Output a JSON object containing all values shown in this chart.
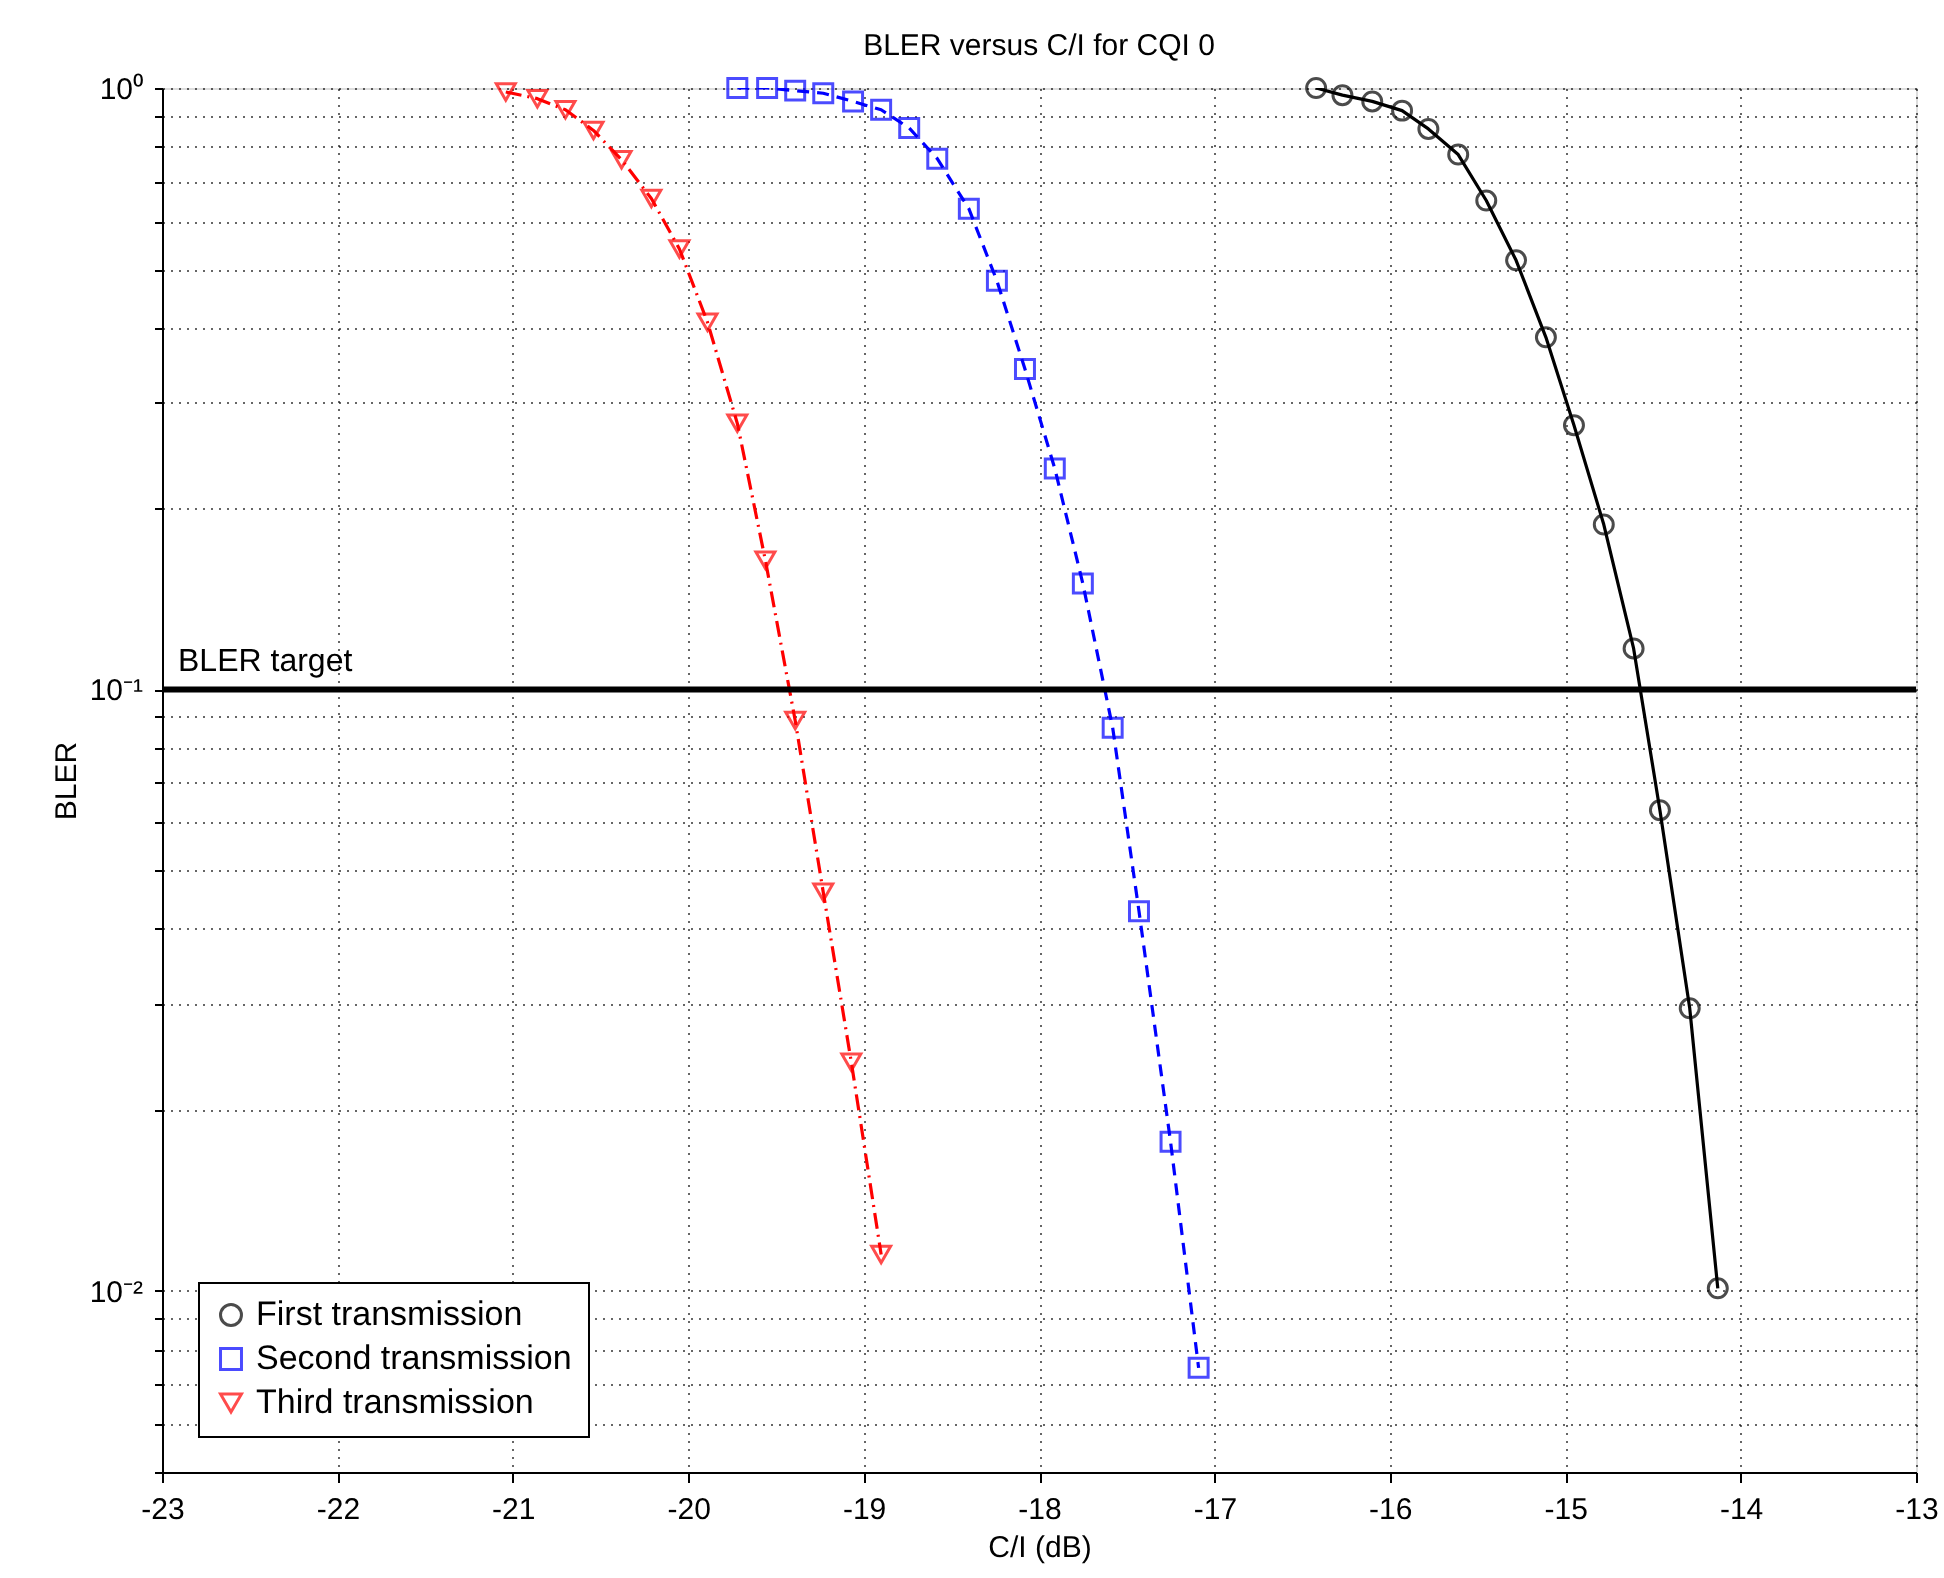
{
  "chart_data": {
    "type": "line",
    "title": "BLER versus C/I for CQI 0",
    "xlabel": "C/I (dB)",
    "ylabel": "BLER",
    "log": "y",
    "grid": true,
    "legend": "bottom left",
    "xlim": [
      -23,
      -13
    ],
    "xticks": [
      -23,
      -22,
      -21,
      -20,
      -19,
      -18,
      -17,
      -16,
      -15,
      -14,
      -13
    ],
    "ylim": [
      0.005,
      1
    ],
    "yticks": [
      {
        "value": 0.005,
        "label": null
      },
      {
        "value": 0.006,
        "label": null
      },
      {
        "value": 0.007,
        "label": null
      },
      {
        "value": 0.008,
        "label": null
      },
      {
        "value": 0.009,
        "label": null
      },
      {
        "value": 0.01,
        "label": "10⁻²"
      },
      {
        "value": 0.02,
        "label": null
      },
      {
        "value": 0.03,
        "label": null
      },
      {
        "value": 0.04,
        "label": null
      },
      {
        "value": 0.05,
        "label": null
      },
      {
        "value": 0.06,
        "label": null
      },
      {
        "value": 0.07,
        "label": null
      },
      {
        "value": 0.08,
        "label": null
      },
      {
        "value": 0.09,
        "label": null
      },
      {
        "value": 0.1,
        "label": "10⁻¹"
      },
      {
        "value": 0.2,
        "label": null
      },
      {
        "value": 0.3,
        "label": null
      },
      {
        "value": 0.4,
        "label": null
      },
      {
        "value": 0.5,
        "label": null
      },
      {
        "value": 0.6,
        "label": null
      },
      {
        "value": 0.7,
        "label": null
      },
      {
        "value": 0.8,
        "label": null
      },
      {
        "value": 0.9,
        "label": null
      },
      {
        "value": 1,
        "label": "10⁰"
      }
    ],
    "ref_lines": [
      {
        "axis": "y",
        "value": 0.1,
        "label": "BLER target",
        "color": "#000000"
      }
    ],
    "series": [
      {
        "name": "First transmission",
        "color": "#000000",
        "marker": "circle",
        "line_style": "solid",
        "x": [
          -16.42,
          -16.27,
          -16.1,
          -15.93,
          -15.78,
          -15.61,
          -15.45,
          -15.28,
          -15.11,
          -14.95,
          -14.78,
          -14.61,
          -14.46,
          -14.29,
          -14.13
        ],
        "values": [
          1.0,
          0.973,
          0.95,
          0.917,
          0.855,
          0.775,
          0.65,
          0.517,
          0.385,
          0.275,
          0.188,
          0.117,
          0.063,
          0.0295,
          0.0101
        ]
      },
      {
        "name": "Second transmission",
        "color": "#0000ff",
        "marker": "square",
        "line_style": "dashed",
        "x": [
          -19.72,
          -19.55,
          -19.39,
          -19.23,
          -19.06,
          -18.9,
          -18.74,
          -18.58,
          -18.4,
          -18.24,
          -18.08,
          -17.91,
          -17.75,
          -17.58,
          -17.43,
          -17.25,
          -17.09
        ],
        "values": [
          1.0,
          1.0,
          0.99,
          0.98,
          0.95,
          0.92,
          0.858,
          0.763,
          0.63,
          0.478,
          0.341,
          0.233,
          0.15,
          0.0864,
          0.0428,
          0.0177,
          0.00745
        ]
      },
      {
        "name": "Third transmission",
        "color": "#ff0000",
        "marker": "triangle",
        "line_style": "dashdot",
        "x": [
          -21.04,
          -20.86,
          -20.7,
          -20.54,
          -20.38,
          -20.21,
          -20.05,
          -19.89,
          -19.72,
          -19.56,
          -19.39,
          -19.23,
          -19.07,
          -18.9
        ],
        "values": [
          0.985,
          0.96,
          0.92,
          0.85,
          0.76,
          0.655,
          0.54,
          0.408,
          0.277,
          0.164,
          0.0888,
          0.046,
          0.024,
          0.0115
        ]
      }
    ]
  }
}
